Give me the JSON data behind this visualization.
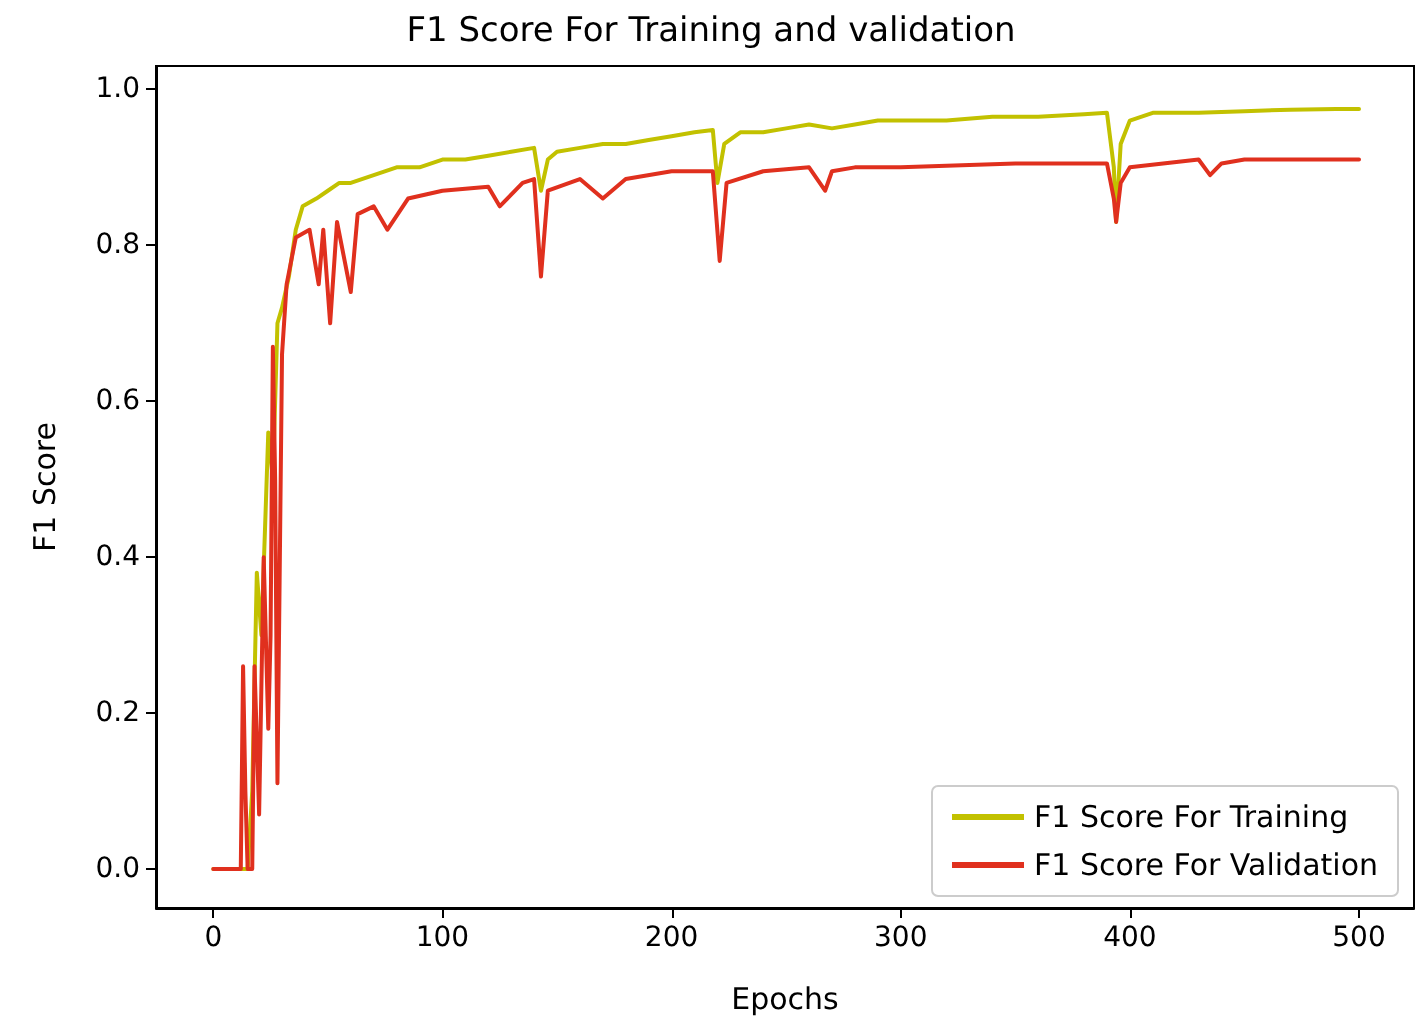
{
  "chart_data": {
    "type": "line",
    "title": "F1 Score For Training and validation",
    "xlabel": "Epochs",
    "ylabel": "F1 Score",
    "xlim": [
      -25,
      524
    ],
    "xticks": [
      0,
      100,
      200,
      300,
      400,
      500
    ],
    "ylim": [
      -0.05,
      1.03
    ],
    "yticks": [
      {
        "value": 0,
        "label": "0.0"
      },
      0.2,
      0.4,
      0.6,
      0.8,
      {
        "value": 1,
        "label": "1.0"
      }
    ],
    "grid": false,
    "legend": "bottom right",
    "marker": "none",
    "line_style": "solid",
    "series": [
      {
        "name": "F1 Score For Training",
        "color": "#c2c100",
        "x": [
          0,
          5,
          10,
          15,
          17,
          19,
          21,
          24,
          26,
          28,
          30,
          33,
          36,
          39,
          45,
          50,
          55,
          60,
          70,
          80,
          90,
          100,
          110,
          120,
          130,
          140,
          143,
          146,
          150,
          160,
          170,
          180,
          190,
          200,
          210,
          218,
          220,
          223,
          230,
          240,
          250,
          260,
          270,
          280,
          290,
          300,
          320,
          340,
          360,
          380,
          390,
          393,
          394,
          396,
          400,
          410,
          430,
          450,
          470,
          490,
          500
        ],
        "values": [
          0,
          0,
          0,
          0,
          0.1,
          0.38,
          0.3,
          0.56,
          0.5,
          0.7,
          0.72,
          0.76,
          0.82,
          0.85,
          0.86,
          0.87,
          0.88,
          0.88,
          0.89,
          0.9,
          0.9,
          0.91,
          0.91,
          0.915,
          0.92,
          0.925,
          0.87,
          0.91,
          0.92,
          0.925,
          0.93,
          0.93,
          0.935,
          0.94,
          0.945,
          0.948,
          0.88,
          0.93,
          0.945,
          0.945,
          0.95,
          0.955,
          0.95,
          0.955,
          0.96,
          0.96,
          0.96,
          0.965,
          0.965,
          0.968,
          0.97,
          0.9,
          0.83,
          0.93,
          0.96,
          0.97,
          0.97,
          0.972,
          0.974,
          0.975,
          0.975
        ]
      },
      {
        "name": "F1 Score For Validation",
        "color": "#e0301e",
        "x": [
          0,
          5,
          10,
          12,
          13,
          14,
          15,
          17,
          18,
          20,
          22,
          24,
          25,
          26,
          27,
          28,
          30,
          32,
          36,
          42,
          46,
          48,
          51,
          54,
          60,
          63,
          70,
          76,
          85,
          100,
          120,
          125,
          135,
          140,
          143,
          146,
          160,
          170,
          180,
          200,
          218,
          221,
          224,
          240,
          260,
          267,
          270,
          280,
          300,
          350,
          390,
          393,
          394,
          396,
          400,
          430,
          435,
          440,
          450,
          470,
          500
        ],
        "values": [
          0,
          0,
          0,
          0,
          0.26,
          0.1,
          0,
          0,
          0.26,
          0.07,
          0.4,
          0.18,
          0.3,
          0.67,
          0.5,
          0.11,
          0.66,
          0.75,
          0.81,
          0.82,
          0.75,
          0.82,
          0.7,
          0.83,
          0.74,
          0.84,
          0.85,
          0.82,
          0.86,
          0.87,
          0.875,
          0.85,
          0.88,
          0.885,
          0.76,
          0.87,
          0.885,
          0.86,
          0.885,
          0.895,
          0.895,
          0.78,
          0.88,
          0.895,
          0.9,
          0.87,
          0.895,
          0.9,
          0.9,
          0.905,
          0.905,
          0.86,
          0.83,
          0.88,
          0.9,
          0.91,
          0.89,
          0.905,
          0.91,
          0.91,
          0.91
        ]
      }
    ]
  }
}
